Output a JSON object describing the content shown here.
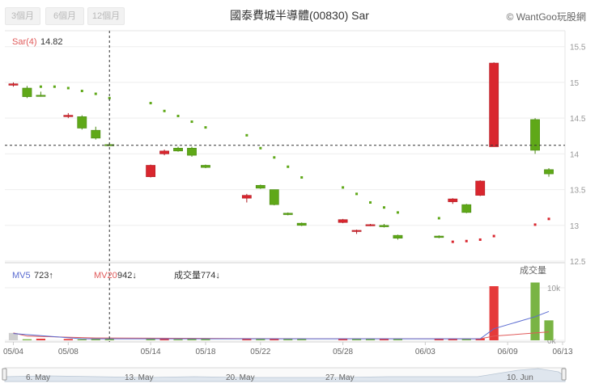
{
  "toolbar": {
    "range_buttons": [
      "3個月",
      "6個月",
      "12個月"
    ]
  },
  "title": "國泰費城半導體(00830) Sar",
  "credit": "© WantGoo玩股網",
  "indicators": {
    "sar_label": "Sar(4)",
    "sar_value": "14.82",
    "mv5_label": "MV5",
    "mv5_value": "723↑",
    "mv20_label": "MV20",
    "mv20_value": "942↓",
    "volume_label": "成交量",
    "volume_value": "774↓",
    "volume_panel_title": "成交量"
  },
  "colors": {
    "up": "#d9262e",
    "down": "#5fa818",
    "sar_above": "#5fa818",
    "sar_below": "#d9262e",
    "mv5": "#5b6cd1",
    "mv20": "#e05a5a",
    "vol_up": "#e53a3a",
    "vol_down": "#79b444",
    "vol_neutral": "#cfcfcf"
  },
  "chart_data": {
    "type": "candlestick",
    "x": [
      "05/04",
      "05/05",
      "05/06",
      "05/07",
      "05/08",
      "05/09",
      "05/10",
      "05/11",
      "05/12",
      "05/13",
      "05/14",
      "05/15",
      "05/16",
      "05/17",
      "05/18",
      "05/19",
      "05/20",
      "05/21",
      "05/22",
      "05/23",
      "05/24",
      "05/25",
      "05/26",
      "05/27",
      "05/28",
      "05/29",
      "05/30",
      "05/31",
      "06/01",
      "06/02",
      "06/03",
      "06/04",
      "06/05",
      "06/06",
      "06/07",
      "06/08",
      "06/09",
      "06/10",
      "06/11",
      "06/12",
      "06/13"
    ],
    "x_tick_labels": [
      "05/04",
      "05/08",
      "05/14",
      "05/18",
      "05/22",
      "05/28",
      "06/03",
      "06/09",
      "06/13"
    ],
    "price_ylim": [
      12.5,
      15.7
    ],
    "price_ticks": [
      "12.5",
      "13",
      "13.5",
      "14",
      "14.5",
      "15",
      "15.5"
    ],
    "crosshair_price": 14.12,
    "candles": [
      {
        "o": 14.96,
        "h": 15.0,
        "l": 14.94,
        "c": 14.98
      },
      {
        "o": 14.92,
        "h": 14.95,
        "l": 14.78,
        "c": 14.8
      },
      {
        "o": 14.82,
        "h": 14.87,
        "l": 14.8,
        "c": 14.81
      },
      {
        "o": 14.52,
        "h": 14.57,
        "l": 14.5,
        "c": 14.54
      },
      {
        "o": 14.52,
        "h": 14.54,
        "l": 14.34,
        "c": 14.36
      },
      {
        "o": 14.33,
        "h": 14.38,
        "l": 14.2,
        "c": 14.22
      },
      {
        "o": 14.13,
        "h": 14.15,
        "l": 14.11,
        "c": 14.12
      },
      {
        "o": 13.68,
        "h": 13.85,
        "l": 13.67,
        "c": 13.84
      },
      {
        "o": 14.0,
        "h": 14.06,
        "l": 13.98,
        "c": 14.04
      },
      {
        "o": 14.08,
        "h": 14.1,
        "l": 14.03,
        "c": 14.04
      },
      {
        "o": 14.08,
        "h": 14.1,
        "l": 13.96,
        "c": 13.98
      },
      {
        "o": 13.84,
        "h": 13.85,
        "l": 13.8,
        "c": 13.81
      },
      {
        "o": 13.38,
        "h": 13.44,
        "l": 13.32,
        "c": 13.42
      },
      {
        "o": 13.56,
        "h": 13.57,
        "l": 13.51,
        "c": 13.52
      },
      {
        "o": 13.5,
        "h": 13.5,
        "l": 13.28,
        "c": 13.29
      },
      {
        "o": 13.17,
        "h": 13.18,
        "l": 13.14,
        "c": 13.15
      },
      {
        "o": 13.03,
        "h": 13.04,
        "l": 12.99,
        "c": 13.0
      },
      {
        "o": 13.04,
        "h": 13.09,
        "l": 13.03,
        "c": 13.08
      },
      {
        "o": 12.92,
        "h": 12.94,
        "l": 12.88,
        "c": 12.93
      },
      {
        "o": 13.0,
        "h": 13.02,
        "l": 12.99,
        "c": 13.01
      },
      {
        "o": 13.0,
        "h": 13.02,
        "l": 12.97,
        "c": 12.98
      },
      {
        "o": 12.86,
        "h": 12.87,
        "l": 12.8,
        "c": 12.82
      },
      {
        "o": 12.85,
        "h": 12.86,
        "l": 12.82,
        "c": 12.83
      },
      {
        "o": 13.33,
        "h": 13.38,
        "l": 13.3,
        "c": 13.37
      },
      {
        "o": 13.29,
        "h": 13.3,
        "l": 13.17,
        "c": 13.18
      },
      {
        "o": 13.42,
        "h": 13.63,
        "l": 13.41,
        "c": 13.62
      },
      {
        "o": 14.1,
        "h": 15.28,
        "l": 14.1,
        "c": 15.27
      },
      {
        "o": 14.48,
        "h": 14.5,
        "l": 14.0,
        "c": 14.05
      },
      {
        "o": 13.78,
        "h": 13.8,
        "l": 13.68,
        "c": 13.72
      }
    ],
    "candle_dates": [
      "05/04",
      "05/05",
      "05/06",
      "05/08",
      "05/09",
      "05/10",
      "05/11",
      "05/14",
      "05/15",
      "05/16",
      "05/17",
      "05/18",
      "05/21",
      "05/22",
      "05/23",
      "05/24",
      "05/25",
      "05/28",
      "05/29",
      "05/30",
      "05/31",
      "06/01",
      "06/04",
      "06/05",
      "06/06",
      "06/07",
      "06/08",
      "06/11",
      "06/12"
    ],
    "sar": [
      {
        "d": "05/06",
        "v": 14.94,
        "pos": "above"
      },
      {
        "d": "05/07",
        "v": 14.94,
        "pos": "above"
      },
      {
        "d": "05/08",
        "v": 14.92,
        "pos": "above"
      },
      {
        "d": "05/09",
        "v": 14.88,
        "pos": "above"
      },
      {
        "d": "05/10",
        "v": 14.84,
        "pos": "above"
      },
      {
        "d": "05/11",
        "v": 14.78,
        "pos": "above"
      },
      {
        "d": "05/14",
        "v": 14.71,
        "pos": "above"
      },
      {
        "d": "05/15",
        "v": 14.6,
        "pos": "above"
      },
      {
        "d": "05/16",
        "v": 14.53,
        "pos": "above"
      },
      {
        "d": "05/17",
        "v": 14.45,
        "pos": "above"
      },
      {
        "d": "05/18",
        "v": 14.37,
        "pos": "above"
      },
      {
        "d": "05/21",
        "v": 14.26,
        "pos": "above"
      },
      {
        "d": "05/22",
        "v": 14.08,
        "pos": "above"
      },
      {
        "d": "05/23",
        "v": 13.95,
        "pos": "above"
      },
      {
        "d": "05/24",
        "v": 13.82,
        "pos": "above"
      },
      {
        "d": "05/25",
        "v": 13.67,
        "pos": "above"
      },
      {
        "d": "05/28",
        "v": 13.53,
        "pos": "above"
      },
      {
        "d": "05/29",
        "v": 13.44,
        "pos": "above"
      },
      {
        "d": "05/30",
        "v": 13.32,
        "pos": "above"
      },
      {
        "d": "05/31",
        "v": 13.25,
        "pos": "above"
      },
      {
        "d": "06/01",
        "v": 13.18,
        "pos": "above"
      },
      {
        "d": "06/04",
        "v": 13.1,
        "pos": "above"
      },
      {
        "d": "06/05",
        "v": 12.77,
        "pos": "below"
      },
      {
        "d": "06/06",
        "v": 12.78,
        "pos": "below"
      },
      {
        "d": "06/07",
        "v": 12.8,
        "pos": "below"
      },
      {
        "d": "06/08",
        "v": 12.85,
        "pos": "below"
      },
      {
        "d": "06/11",
        "v": 13.01,
        "pos": "below"
      },
      {
        "d": "06/12",
        "v": 13.09,
        "pos": "below"
      }
    ],
    "volume_ylim": [
      0,
      14000
    ],
    "volume_ticks": [
      "0k",
      "10k"
    ],
    "volume": [
      {
        "d": "05/04",
        "v": 1400,
        "t": "n"
      },
      {
        "d": "05/05",
        "v": 200,
        "t": "d"
      },
      {
        "d": "05/06",
        "v": 300,
        "t": "u"
      },
      {
        "d": "05/08",
        "v": 250,
        "t": "u"
      },
      {
        "d": "05/09",
        "v": 200,
        "t": "d"
      },
      {
        "d": "05/10",
        "v": 250,
        "t": "d"
      },
      {
        "d": "05/11",
        "v": 300,
        "t": "d"
      },
      {
        "d": "05/14",
        "v": 300,
        "t": "d"
      },
      {
        "d": "05/15",
        "v": 250,
        "t": "u"
      },
      {
        "d": "05/16",
        "v": 200,
        "t": "d"
      },
      {
        "d": "05/17",
        "v": 300,
        "t": "d"
      },
      {
        "d": "05/18",
        "v": 300,
        "t": "d"
      },
      {
        "d": "05/21",
        "v": 250,
        "t": "u"
      },
      {
        "d": "05/22",
        "v": 300,
        "t": "d"
      },
      {
        "d": "05/23",
        "v": 300,
        "t": "u"
      },
      {
        "d": "05/24",
        "v": 350,
        "t": "d"
      },
      {
        "d": "05/25",
        "v": 300,
        "t": "d"
      },
      {
        "d": "05/28",
        "v": 300,
        "t": "u"
      },
      {
        "d": "05/29",
        "v": 300,
        "t": "d"
      },
      {
        "d": "05/30",
        "v": 300,
        "t": "d"
      },
      {
        "d": "05/31",
        "v": 300,
        "t": "u"
      },
      {
        "d": "06/01",
        "v": 300,
        "t": "d"
      },
      {
        "d": "06/04",
        "v": 300,
        "t": "u"
      },
      {
        "d": "06/05",
        "v": 300,
        "t": "u"
      },
      {
        "d": "06/06",
        "v": 300,
        "t": "d"
      },
      {
        "d": "06/07",
        "v": 350,
        "t": "u"
      },
      {
        "d": "06/08",
        "v": 10300,
        "t": "u"
      },
      {
        "d": "06/11",
        "v": 11000,
        "t": "d"
      },
      {
        "d": "06/12",
        "v": 3800,
        "t": "d"
      }
    ],
    "mv5": [
      {
        "d": "05/04",
        "v": 1300
      },
      {
        "d": "05/09",
        "v": 300
      },
      {
        "d": "06/07",
        "v": 300
      },
      {
        "d": "06/08",
        "v": 2200
      },
      {
        "d": "06/11",
        "v": 4500
      },
      {
        "d": "06/12",
        "v": 5500
      }
    ],
    "mv20": [
      {
        "d": "05/04",
        "v": 1400
      },
      {
        "d": "05/05",
        "v": 800
      },
      {
        "d": "05/10",
        "v": 450
      },
      {
        "d": "05/21",
        "v": 320
      },
      {
        "d": "06/07",
        "v": 300
      },
      {
        "d": "06/08",
        "v": 800
      },
      {
        "d": "06/11",
        "v": 1400
      },
      {
        "d": "06/12",
        "v": 1600
      }
    ]
  },
  "navigator": {
    "labels": [
      "6. May",
      "13. May",
      "20. May",
      "27. May",
      "10. Jun"
    ]
  }
}
